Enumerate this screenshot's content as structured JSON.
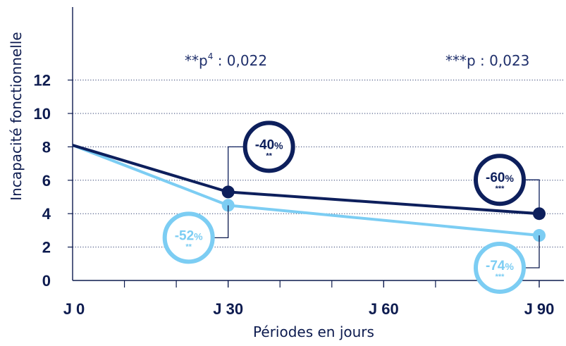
{
  "chart_data": {
    "type": "line",
    "ylabel": "Incapacité fonctionnelle",
    "xlabel": "Périodes en jours",
    "ylim": [
      0,
      14
    ],
    "yticks": [
      0,
      2,
      4,
      6,
      8,
      10,
      12
    ],
    "xlim": [
      0,
      90
    ],
    "categories": [
      "J 0",
      "J 30",
      "J 60",
      "J 90"
    ],
    "category_x": [
      0,
      30,
      60,
      90
    ],
    "minor_x": [
      10,
      20,
      40,
      50,
      70,
      80
    ],
    "grid": "horizontal dotted",
    "series": [
      {
        "color": "#0d1f5c",
        "points": [
          {
            "x": 0,
            "y": 8.1
          },
          {
            "x": 30,
            "y": 5.3
          },
          {
            "x": 90,
            "y": 4.0
          }
        ],
        "annotations": [
          {
            "x": 30,
            "pct": "-40",
            "unit": "%",
            "stars": "**",
            "placement": "above-right"
          },
          {
            "x": 90,
            "pct": "-60",
            "unit": "%",
            "stars": "***",
            "placement": "above-left"
          }
        ]
      },
      {
        "color": "#7ccdf3",
        "points": [
          {
            "x": 0,
            "y": 8.1
          },
          {
            "x": 30,
            "y": 4.5
          },
          {
            "x": 90,
            "y": 2.7
          }
        ],
        "annotations": [
          {
            "x": 30,
            "pct": "-52",
            "unit": "%",
            "stars": "**",
            "placement": "below-left"
          },
          {
            "x": 90,
            "pct": "-74",
            "unit": "%",
            "stars": "***",
            "placement": "below-left"
          }
        ]
      }
    ],
    "notes": [
      {
        "pre": "**p",
        "sup": "4",
        "post": " : 0,022"
      },
      {
        "pre": "***p : 0,023",
        "sup": "",
        "post": ""
      }
    ]
  }
}
